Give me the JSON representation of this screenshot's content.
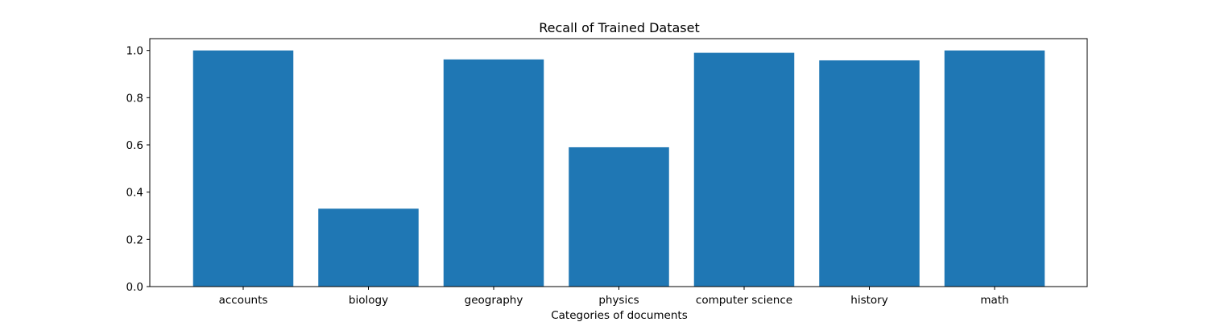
{
  "chart_data": {
    "type": "bar",
    "title": "Recall of Trained Dataset",
    "xlabel": "Categories of documents",
    "ylabel": "",
    "categories": [
      "accounts",
      "biology",
      "geography",
      "physics",
      "computer science",
      "history",
      "math"
    ],
    "values": [
      1.0,
      0.33,
      0.962,
      0.59,
      0.99,
      0.958,
      1.0
    ],
    "ylim": [
      0,
      1.05
    ],
    "yticks": [
      "0.0",
      "0.2",
      "0.4",
      "0.6",
      "0.8",
      "1.0"
    ],
    "bar_color": "#1f77b4",
    "grid": false,
    "legend": "none"
  }
}
